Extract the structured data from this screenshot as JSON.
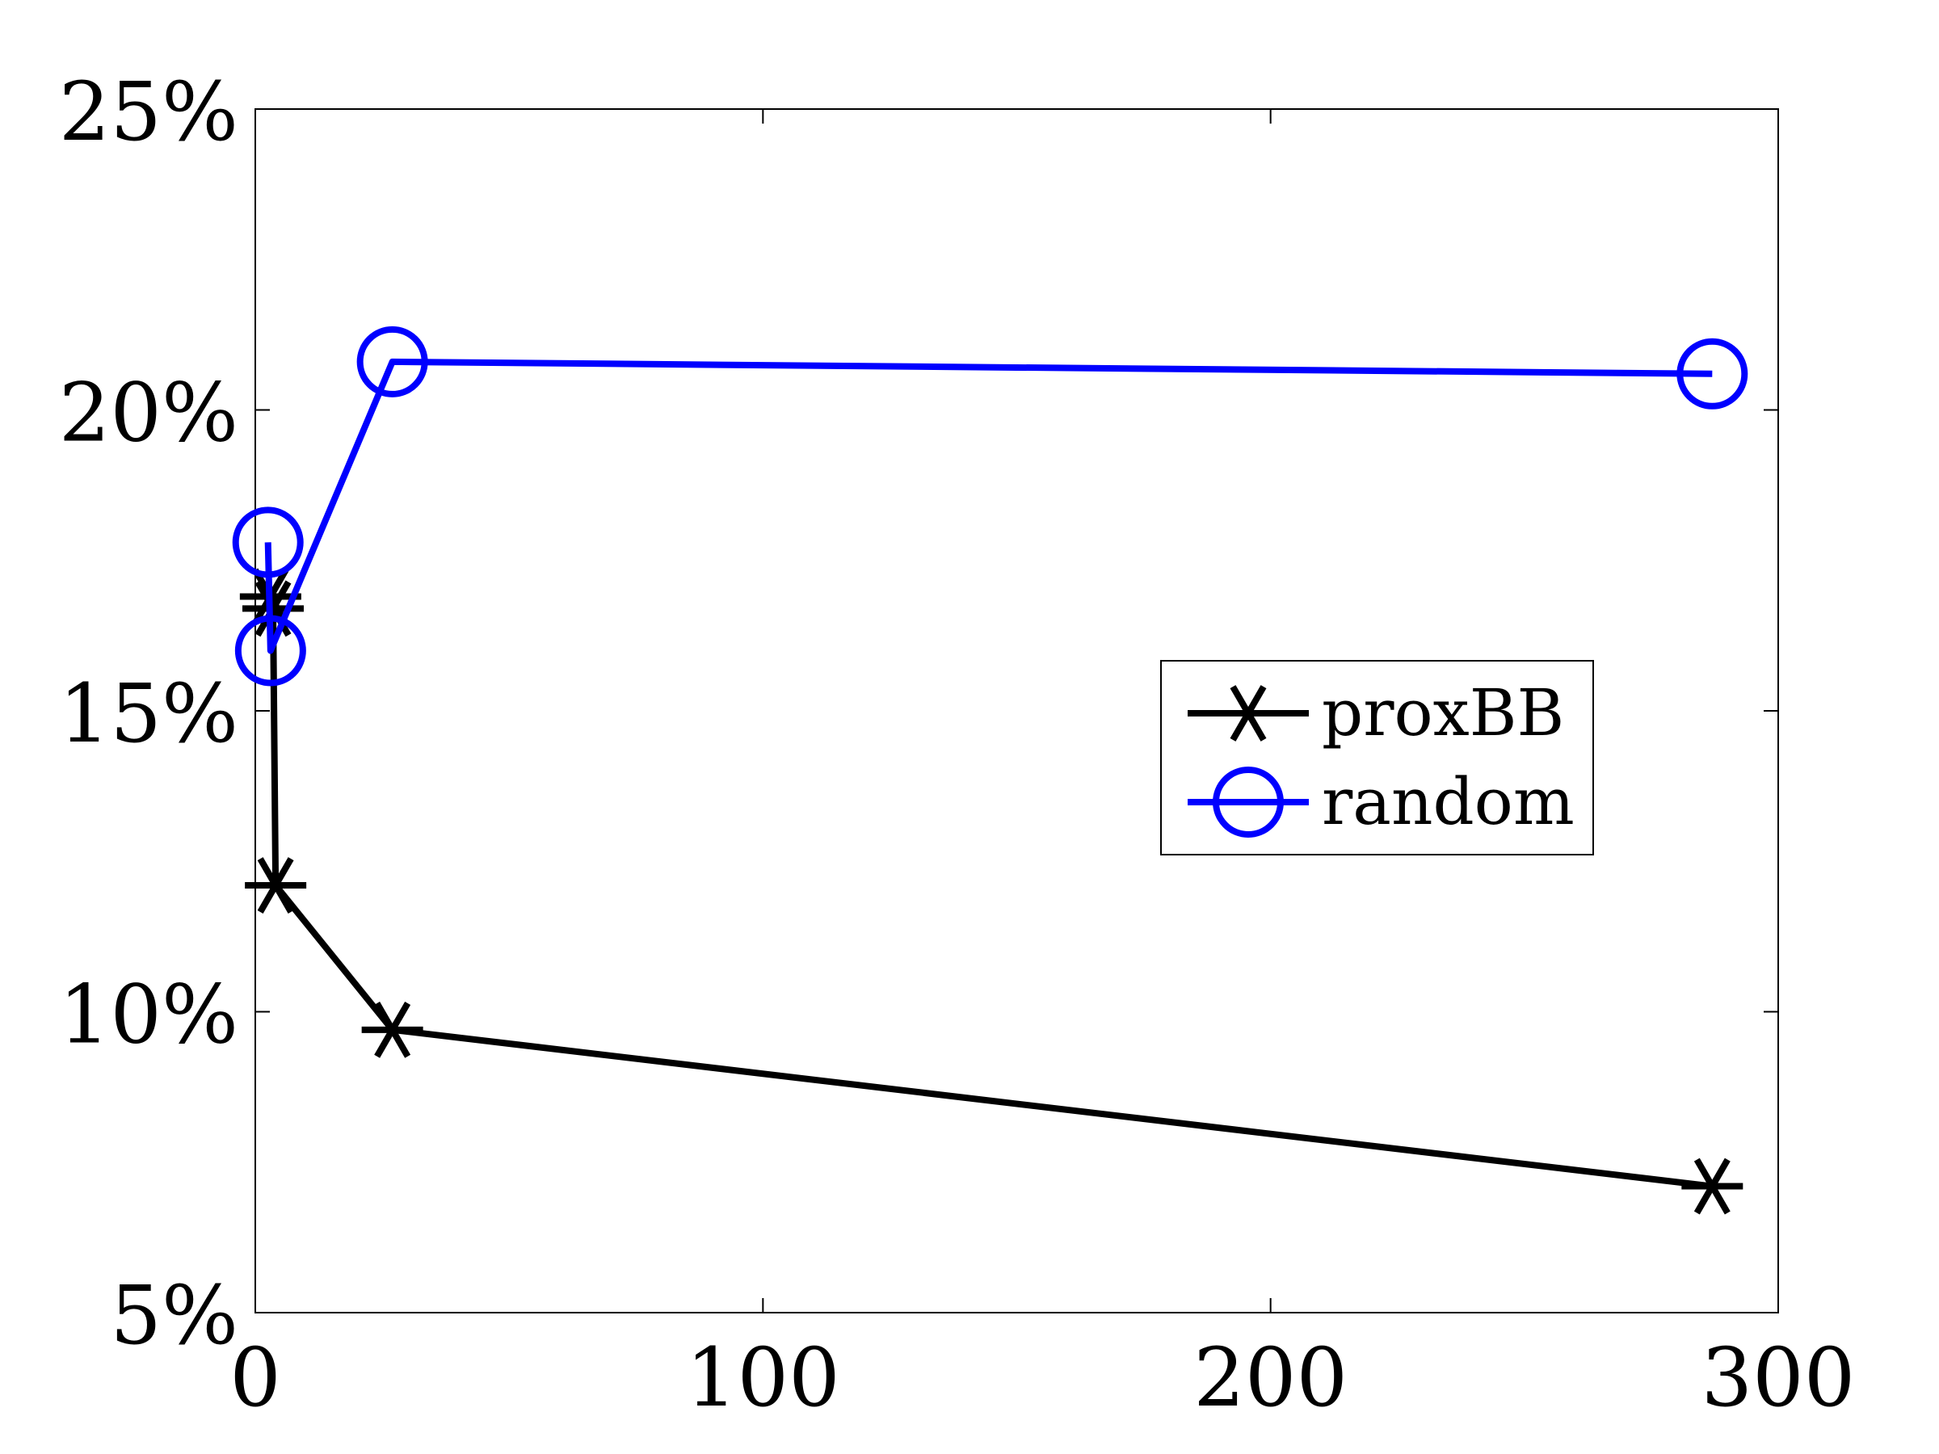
{
  "chart_data": {
    "type": "line",
    "title": "",
    "xlabel": "",
    "ylabel": "",
    "xlim": [
      0,
      300
    ],
    "ylim": [
      5,
      25
    ],
    "x_ticks": [
      0,
      100,
      200,
      300
    ],
    "x_tick_labels": [
      "0",
      "100",
      "200",
      "300"
    ],
    "y_ticks": [
      5,
      10,
      15,
      20,
      25
    ],
    "y_tick_labels": [
      "5%",
      "10%",
      "15%",
      "20%",
      "25%"
    ],
    "grid": false,
    "legend_position": "center-right",
    "series": [
      {
        "name": "proxBB",
        "color": "#000000",
        "marker": "asterisk",
        "x": [
          3,
          3.5,
          4,
          27,
          287
        ],
        "y": [
          16.9,
          16.7,
          12.1,
          9.7,
          7.1
        ]
      },
      {
        "name": "random",
        "color": "#0000ff",
        "marker": "circle",
        "x": [
          2.5,
          3,
          27,
          287
        ],
        "y": [
          17.8,
          16.0,
          20.8,
          20.6
        ]
      }
    ]
  }
}
